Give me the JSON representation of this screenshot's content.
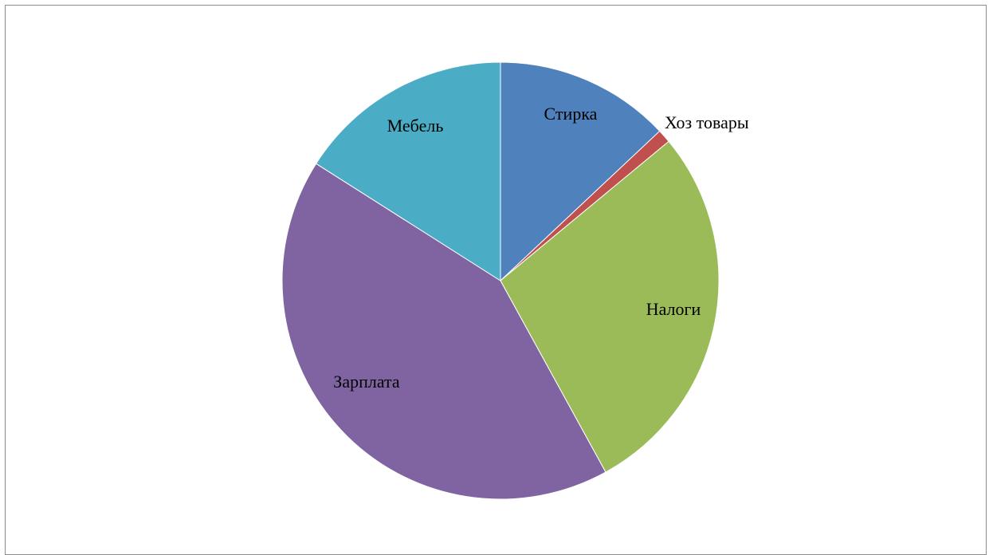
{
  "chart_data": {
    "type": "pie",
    "title": "",
    "start_angle_deg": 0,
    "direction": "clockwise",
    "slices": [
      {
        "label": "Стирка",
        "value": 13.0,
        "color": "#4F81BD"
      },
      {
        "label": "Хоз товары",
        "value": 1.0,
        "color": "#C0504D"
      },
      {
        "label": "Налоги",
        "value": 28.0,
        "color": "#9BBB59"
      },
      {
        "label": "Зарплата",
        "value": 42.0,
        "color": "#8064A2"
      },
      {
        "label": "Мебель",
        "value": 16.0,
        "color": "#4BACC6"
      }
    ],
    "data_labels": "category_name",
    "legend": "none"
  }
}
